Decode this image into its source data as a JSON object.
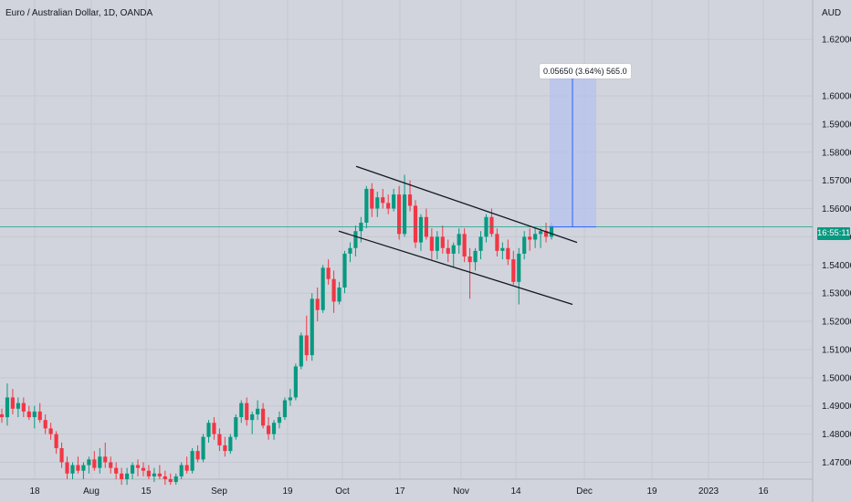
{
  "header": {
    "symbol_title": "Euro / Australian Dollar, 1D, OANDA",
    "currency": "AUD"
  },
  "measure_label": "0.05650 (3.64%) 565.0",
  "countdown": "16:55:11",
  "colors": {
    "background": "#d1d4dc",
    "up": "#089981",
    "down": "#f23645",
    "grid": "#c4c8d2",
    "measure_fill": "#b4c3ee",
    "measure_line": "#2962ff",
    "trend_line": "#131722"
  },
  "chart_data": {
    "type": "candlestick",
    "title": "Euro / Australian Dollar, 1D, OANDA",
    "y_axis_label": "AUD",
    "ylim": [
      1.464,
      1.634
    ],
    "y_ticks": [
      "1.62000",
      "1.60000",
      "1.59000",
      "1.58000",
      "1.57000",
      "1.56000",
      "1.55000",
      "1.54000",
      "1.53000",
      "1.52000",
      "1.51000",
      "1.50000",
      "1.49000",
      "1.48000",
      "1.47000"
    ],
    "x_ticks": [
      "18",
      "Aug",
      "15",
      "Sep",
      "19",
      "Oct",
      "17",
      "Nov",
      "14",
      "Dec",
      "19",
      "2023",
      "16"
    ],
    "grid": true,
    "candles": [
      [
        1.487,
        1.489,
        1.484,
        1.486
      ],
      [
        1.486,
        1.498,
        1.483,
        1.493
      ],
      [
        1.493,
        1.496,
        1.487,
        1.489
      ],
      [
        1.489,
        1.493,
        1.486,
        1.491
      ],
      [
        1.491,
        1.493,
        1.486,
        1.488
      ],
      [
        1.488,
        1.49,
        1.485,
        1.486
      ],
      [
        1.486,
        1.49,
        1.482,
        1.488
      ],
      [
        1.488,
        1.491,
        1.484,
        1.485
      ],
      [
        1.485,
        1.487,
        1.48,
        1.482
      ],
      [
        1.482,
        1.484,
        1.478,
        1.48
      ],
      [
        1.48,
        1.481,
        1.473,
        1.475
      ],
      [
        1.475,
        1.477,
        1.468,
        1.47
      ],
      [
        1.47,
        1.472,
        1.464,
        1.466
      ],
      [
        1.466,
        1.47,
        1.464,
        1.469
      ],
      [
        1.469,
        1.472,
        1.466,
        1.467
      ],
      [
        1.467,
        1.47,
        1.464,
        1.469
      ],
      [
        1.469,
        1.472,
        1.466,
        1.471
      ],
      [
        1.471,
        1.474,
        1.467,
        1.468
      ],
      [
        1.468,
        1.475,
        1.466,
        1.472
      ],
      [
        1.472,
        1.477,
        1.468,
        1.47
      ],
      [
        1.47,
        1.472,
        1.466,
        1.468
      ],
      [
        1.468,
        1.47,
        1.464,
        1.466
      ],
      [
        1.466,
        1.468,
        1.462,
        1.464
      ],
      [
        1.464,
        1.468,
        1.462,
        1.466
      ],
      [
        1.466,
        1.47,
        1.464,
        1.469
      ],
      [
        1.469,
        1.471,
        1.465,
        1.468
      ],
      [
        1.468,
        1.47,
        1.465,
        1.467
      ],
      [
        1.467,
        1.469,
        1.464,
        1.465
      ],
      [
        1.465,
        1.468,
        1.463,
        1.466
      ],
      [
        1.466,
        1.469,
        1.464,
        1.465
      ],
      [
        1.465,
        1.467,
        1.462,
        1.464
      ],
      [
        1.464,
        1.466,
        1.462,
        1.463
      ],
      [
        1.463,
        1.466,
        1.462,
        1.465
      ],
      [
        1.465,
        1.47,
        1.464,
        1.469
      ],
      [
        1.469,
        1.472,
        1.466,
        1.467
      ],
      [
        1.467,
        1.475,
        1.466,
        1.474
      ],
      [
        1.474,
        1.476,
        1.47,
        1.471
      ],
      [
        1.471,
        1.48,
        1.47,
        1.479
      ],
      [
        1.479,
        1.485,
        1.477,
        1.484
      ],
      [
        1.484,
        1.486,
        1.478,
        1.48
      ],
      [
        1.48,
        1.482,
        1.474,
        1.476
      ],
      [
        1.476,
        1.479,
        1.472,
        1.474
      ],
      [
        1.474,
        1.48,
        1.473,
        1.479
      ],
      [
        1.479,
        1.487,
        1.478,
        1.486
      ],
      [
        1.486,
        1.492,
        1.484,
        1.491
      ],
      [
        1.491,
        1.493,
        1.483,
        1.485
      ],
      [
        1.485,
        1.488,
        1.48,
        1.487
      ],
      [
        1.487,
        1.492,
        1.485,
        1.489
      ],
      [
        1.489,
        1.491,
        1.482,
        1.483
      ],
      [
        1.483,
        1.486,
        1.478,
        1.48
      ],
      [
        1.48,
        1.485,
        1.478,
        1.484
      ],
      [
        1.484,
        1.488,
        1.482,
        1.486
      ],
      [
        1.486,
        1.493,
        1.485,
        1.492
      ],
      [
        1.492,
        1.496,
        1.49,
        1.493
      ],
      [
        1.493,
        1.505,
        1.492,
        1.504
      ],
      [
        1.504,
        1.516,
        1.503,
        1.515
      ],
      [
        1.515,
        1.522,
        1.506,
        1.508
      ],
      [
        1.508,
        1.53,
        1.506,
        1.528
      ],
      [
        1.528,
        1.532,
        1.52,
        1.524
      ],
      [
        1.524,
        1.54,
        1.523,
        1.539
      ],
      [
        1.539,
        1.542,
        1.533,
        1.535
      ],
      [
        1.535,
        1.538,
        1.523,
        1.527
      ],
      [
        1.527,
        1.534,
        1.526,
        1.532
      ],
      [
        1.532,
        1.545,
        1.53,
        1.544
      ],
      [
        1.544,
        1.548,
        1.541,
        1.546
      ],
      [
        1.546,
        1.554,
        1.543,
        1.552
      ],
      [
        1.552,
        1.557,
        1.548,
        1.555
      ],
      [
        1.555,
        1.568,
        1.553,
        1.567
      ],
      [
        1.567,
        1.569,
        1.557,
        1.56
      ],
      [
        1.56,
        1.566,
        1.557,
        1.564
      ],
      [
        1.564,
        1.567,
        1.56,
        1.562
      ],
      [
        1.562,
        1.565,
        1.558,
        1.56
      ],
      [
        1.56,
        1.567,
        1.559,
        1.565
      ],
      [
        1.565,
        1.568,
        1.549,
        1.551
      ],
      [
        1.551,
        1.572,
        1.55,
        1.565
      ],
      [
        1.565,
        1.57,
        1.559,
        1.561
      ],
      [
        1.561,
        1.563,
        1.546,
        1.548
      ],
      [
        1.548,
        1.558,
        1.545,
        1.557
      ],
      [
        1.557,
        1.56,
        1.549,
        1.55
      ],
      [
        1.55,
        1.553,
        1.542,
        1.545
      ],
      [
        1.545,
        1.552,
        1.542,
        1.55
      ],
      [
        1.55,
        1.554,
        1.544,
        1.546
      ],
      [
        1.546,
        1.549,
        1.541,
        1.544
      ],
      [
        1.544,
        1.548,
        1.539,
        1.547
      ],
      [
        1.547,
        1.553,
        1.544,
        1.551
      ],
      [
        1.551,
        1.553,
        1.541,
        1.543
      ],
      [
        1.543,
        1.546,
        1.528,
        1.541
      ],
      [
        1.541,
        1.546,
        1.538,
        1.545
      ],
      [
        1.545,
        1.552,
        1.542,
        1.55
      ],
      [
        1.55,
        1.558,
        1.548,
        1.557
      ],
      [
        1.557,
        1.56,
        1.55,
        1.551
      ],
      [
        1.551,
        1.553,
        1.543,
        1.545
      ],
      [
        1.545,
        1.548,
        1.542,
        1.546
      ],
      [
        1.546,
        1.549,
        1.54,
        1.542
      ],
      [
        1.542,
        1.545,
        1.533,
        1.534
      ],
      [
        1.534,
        1.546,
        1.526,
        1.544
      ],
      [
        1.544,
        1.552,
        1.542,
        1.55
      ],
      [
        1.55,
        1.553,
        1.545,
        1.549
      ],
      [
        1.549,
        1.553,
        1.546,
        1.551
      ],
      [
        1.551,
        1.553,
        1.546,
        1.552
      ],
      [
        1.552,
        1.555,
        1.548,
        1.55
      ],
      [
        1.55,
        1.555,
        1.549,
        1.554
      ]
    ],
    "annotations": {
      "upper_channel_line": [
        [
          1.575,
          1.548
        ]
      ],
      "lower_channel_line": [
        [
          1.552,
          1.526
        ]
      ],
      "measure": {
        "from": 1.5535,
        "to": 1.61
      },
      "current_price": 1.5535
    }
  }
}
